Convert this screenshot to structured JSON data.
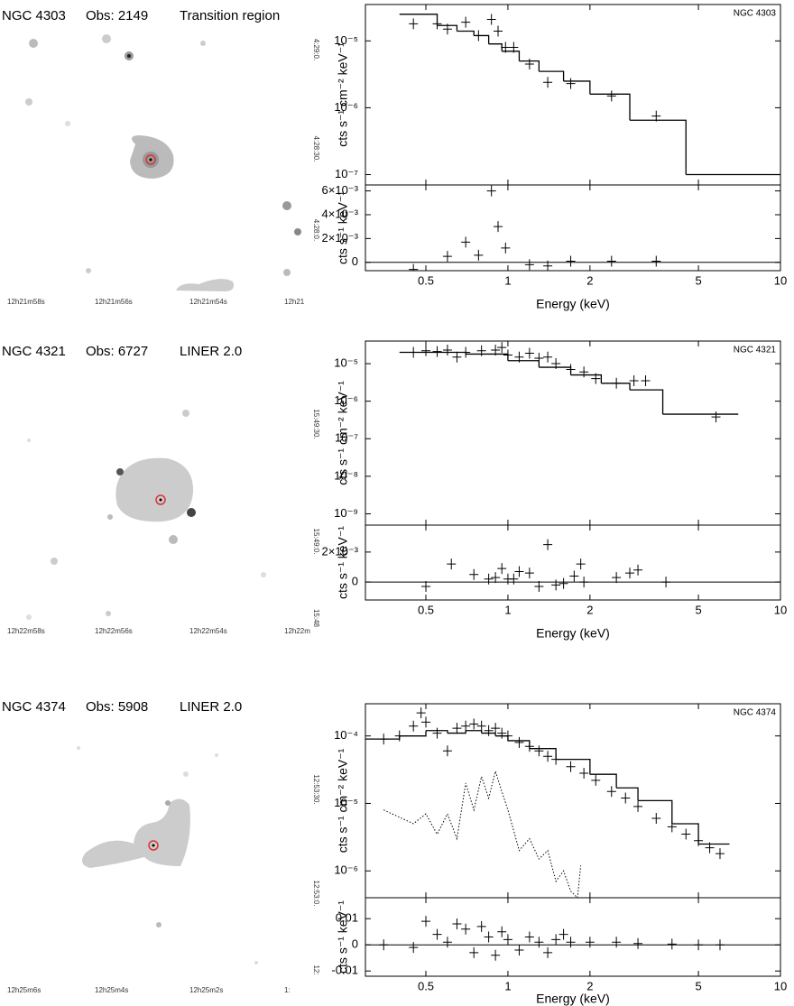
{
  "panels": [
    {
      "header": {
        "name": "NGC 4303",
        "obs": "Obs: 2149",
        "class": "Transition region"
      },
      "image": {
        "ra_labels": [
          "12h21m58s",
          "12h21m56s",
          "12h21m54s",
          "12h21"
        ],
        "dec_labels": [
          "4:29:0.",
          "4:28:30.",
          "4:28:0."
        ]
      }
    },
    {
      "header": {
        "name": "NGC 4321",
        "obs": "Obs: 6727",
        "class": "LINER 2.0"
      },
      "image": {
        "ra_labels": [
          "12h22m58s",
          "12h22m56s",
          "12h22m54s",
          "12h22m"
        ],
        "dec_labels": [
          "15:49:30.",
          "15:49:0.",
          "15:48"
        ]
      }
    },
    {
      "header": {
        "name": "NGC 4374",
        "obs": "Obs: 5908",
        "class": "LINER 2.0"
      },
      "image": {
        "ra_labels": [
          "12h25m6s",
          "12h25m4s",
          "12h25m2s",
          "1:"
        ],
        "dec_labels": [
          "12:53:30.",
          "12:53:0.",
          "12:"
        ]
      }
    }
  ],
  "chart_data": [
    {
      "type": "spectrum",
      "annotation": "NGC 4303",
      "ylabel": "cts s⁻¹ cm⁻² keV⁻¹",
      "log_x": true,
      "log_y": true,
      "xlim": [
        0.3,
        10
      ],
      "ylim": [
        7e-08,
        3.5e-05
      ],
      "yticks": [
        {
          "value": 1e-07,
          "label": "10⁻⁷"
        },
        {
          "value": 1e-06,
          "label": "10⁻⁶"
        },
        {
          "value": 1e-05,
          "label": "10⁻⁵"
        }
      ],
      "series": [
        {
          "style": "points",
          "color": "#000000",
          "x": [
            0.45,
            0.55,
            0.6,
            0.7,
            0.78,
            0.87,
            0.92,
            0.98,
            1.05,
            1.2,
            1.4,
            1.7,
            2.4,
            3.5
          ],
          "values": [
            1.8e-05,
            1.8e-05,
            1.5e-05,
            1.9e-05,
            1.2e-05,
            2.1e-05,
            1.4e-05,
            8e-06,
            8e-06,
            4.5e-06,
            2.4e-06,
            2.3e-06,
            1.5e-06,
            7.5e-07
          ]
        },
        {
          "style": "step",
          "color": "#000000",
          "bins": [
            0.4,
            0.55,
            0.65,
            0.75,
            0.85,
            0.95,
            1.1,
            1.3,
            1.6,
            2.0,
            2.8,
            4.5,
            10
          ],
          "values": [
            2.5e-05,
            1.7e-05,
            1.4e-05,
            1.2e-05,
            9e-06,
            7e-06,
            5e-06,
            3.5e-06,
            2.5e-06,
            1.6e-06,
            6.5e-07,
            1e-07
          ]
        }
      ]
    },
    {
      "type": "residual",
      "ylabel": "cts s⁻¹ keV⁻¹",
      "xlabel": "Energy (keV)",
      "log_x": true,
      "xlim": [
        0.3,
        10
      ],
      "ylim": [
        -0.0007,
        0.0065
      ],
      "xticks": [
        0.5,
        1,
        2,
        5,
        10
      ],
      "yticks": [
        0,
        {
          "value": 0.002,
          "label": "2×10⁻³"
        },
        {
          "value": 0.004,
          "label": "4×10⁻³"
        },
        {
          "value": 0.006,
          "label": "6×10⁻³"
        }
      ],
      "series": [
        {
          "style": "points",
          "color": "#000000",
          "x": [
            0.45,
            0.6,
            0.7,
            0.78,
            0.87,
            0.92,
            0.98,
            1.2,
            1.4,
            1.7,
            2.4,
            3.5
          ],
          "values": [
            -0.0006,
            0.0005,
            0.0017,
            0.0006,
            0.006,
            0.003,
            0.0012,
            -0.0002,
            -0.0003,
            0.0001,
            0.0001,
            0.0001
          ]
        }
      ]
    },
    {
      "type": "spectrum",
      "annotation": "NGC 4321",
      "ylabel": "cts s⁻¹ cm⁻² keV⁻¹",
      "log_x": true,
      "log_y": true,
      "xlim": [
        0.3,
        10
      ],
      "ylim": [
        5e-10,
        4e-05
      ],
      "yticks": [
        {
          "value": 1e-09,
          "label": "10⁻⁹"
        },
        {
          "value": 1e-08,
          "label": "10⁻⁸"
        },
        {
          "value": 1e-07,
          "label": "10⁻⁷"
        },
        {
          "value": 1e-06,
          "label": "10⁻⁶"
        },
        {
          "value": 1e-05,
          "label": "10⁻⁵"
        }
      ],
      "series": [
        {
          "style": "points",
          "color": "#000000",
          "x": [
            0.45,
            0.5,
            0.55,
            0.6,
            0.65,
            0.7,
            0.8,
            0.9,
            0.95,
            1.0,
            1.1,
            1.2,
            1.3,
            1.4,
            1.5,
            1.7,
            1.9,
            2.1,
            2.5,
            2.9,
            3.2,
            5.8
          ],
          "values": [
            2e-05,
            2.2e-05,
            2.1e-05,
            2.3e-05,
            1.5e-05,
            2e-05,
            2.2e-05,
            2.3e-05,
            2.7e-05,
            1.7e-05,
            1.5e-05,
            1.9e-05,
            1.4e-05,
            1.5e-05,
            1e-05,
            7e-06,
            6e-06,
            4e-06,
            3e-06,
            3.5e-06,
            3.5e-06,
            3.8e-07
          ]
        },
        {
          "style": "step",
          "color": "#000000",
          "bins": [
            0.4,
            0.7,
            1.0,
            1.3,
            1.7,
            2.2,
            2.8,
            3.7,
            7
          ],
          "values": [
            2e-05,
            1.8e-05,
            1.2e-05,
            8e-06,
            5e-06,
            3e-06,
            2e-06,
            4.5e-07
          ]
        }
      ]
    },
    {
      "type": "residual",
      "ylabel": "cts s⁻¹ keV⁻¹",
      "xlabel": "Energy (keV)",
      "log_x": true,
      "xlim": [
        0.3,
        10
      ],
      "ylim": [
        -0.0012,
        0.0038
      ],
      "xticks": [
        0.5,
        1,
        2,
        5,
        10
      ],
      "yticks": [
        0,
        {
          "value": 0.002,
          "label": "2×10⁻³"
        }
      ],
      "series": [
        {
          "style": "points",
          "color": "#000000",
          "x": [
            0.5,
            0.62,
            0.75,
            0.85,
            0.9,
            0.95,
            1.0,
            1.05,
            1.1,
            1.2,
            1.3,
            1.4,
            1.5,
            1.6,
            1.75,
            1.85,
            1.9,
            2.5,
            2.8,
            3.0,
            3.8
          ],
          "values": [
            -0.0003,
            0.0012,
            0.0005,
            0.0002,
            0.0003,
            0.0009,
            0.0002,
            0.0002,
            0.0007,
            0.0006,
            -0.0003,
            0.0025,
            -0.0002,
            -0.0001,
            0.0004,
            0.0012,
            0.0,
            0.0003,
            0.0006,
            0.0008,
            0.0
          ]
        }
      ]
    },
    {
      "type": "spectrum",
      "annotation": "NGC 4374",
      "ylabel": "cts s⁻¹ cm⁻² keV⁻¹",
      "log_x": true,
      "log_y": true,
      "xlim": [
        0.3,
        10
      ],
      "ylim": [
        4e-07,
        0.0003
      ],
      "yticks": [
        {
          "value": 1e-06,
          "label": "10⁻⁶"
        },
        {
          "value": 1e-05,
          "label": "10⁻⁵"
        },
        {
          "value": 0.0001,
          "label": "10⁻⁴"
        }
      ],
      "series": [
        {
          "style": "points",
          "color": "#000000",
          "x": [
            0.35,
            0.4,
            0.45,
            0.48,
            0.5,
            0.55,
            0.6,
            0.65,
            0.7,
            0.75,
            0.8,
            0.85,
            0.9,
            0.95,
            1.0,
            1.1,
            1.2,
            1.3,
            1.4,
            1.5,
            1.7,
            1.9,
            2.1,
            2.4,
            2.7,
            3.0,
            3.5,
            4.0,
            4.5,
            5.0,
            5.5,
            6.0
          ],
          "values": [
            9e-05,
            0.0001,
            0.00014,
            0.00022,
            0.00016,
            0.00011,
            6e-05,
            0.00013,
            0.00014,
            0.00015,
            0.00014,
            0.00012,
            0.00013,
            0.00011,
            0.0001,
            8e-05,
            7e-05,
            6e-05,
            5e-05,
            4.5e-05,
            3.5e-05,
            2.8e-05,
            2.2e-05,
            1.5e-05,
            1.2e-05,
            9e-06,
            6e-06,
            4.5e-06,
            3.5e-06,
            2.8e-06,
            2.2e-06,
            1.8e-06
          ]
        },
        {
          "style": "step",
          "color": "#000000",
          "bins": [
            0.3,
            0.4,
            0.5,
            0.6,
            0.7,
            0.8,
            0.9,
            1.0,
            1.2,
            1.5,
            2.0,
            2.5,
            3.0,
            4.0,
            5.0,
            6.5
          ],
          "values": [
            9e-05,
            0.0001,
            0.00012,
            0.00011,
            0.00012,
            0.00011,
            0.0001,
            8.5e-05,
            6.5e-05,
            4.5e-05,
            2.7e-05,
            1.7e-05,
            1.1e-05,
            5e-06,
            2.5e-06
          ]
        },
        {
          "style": "dotted",
          "color": "#000000",
          "x": [
            0.35,
            0.45,
            0.5,
            0.55,
            0.6,
            0.65,
            0.7,
            0.75,
            0.8,
            0.85,
            0.9,
            0.95,
            1.0,
            1.1,
            1.2,
            1.3,
            1.4,
            1.5,
            1.6,
            1.7,
            1.8,
            1.85
          ],
          "values": [
            8e-06,
            5e-06,
            7e-06,
            3.5e-06,
            7e-06,
            3e-06,
            2e-05,
            8e-06,
            2.5e-05,
            1.2e-05,
            3e-05,
            1.5e-05,
            8e-06,
            2e-06,
            3e-06,
            1.5e-06,
            2e-06,
            7e-07,
            1e-06,
            5e-07,
            4e-07,
            1.2e-06
          ]
        }
      ]
    },
    {
      "type": "residual",
      "ylabel": "cts s⁻¹ keV⁻¹",
      "xlabel": "Energy (keV)",
      "log_x": true,
      "xlim": [
        0.3,
        10
      ],
      "ylim": [
        -0.012,
        0.018
      ],
      "xticks": [
        0.5,
        1,
        2,
        5,
        10
      ],
      "yticks": [
        -0.01,
        0,
        0.01
      ],
      "series": [
        {
          "style": "points",
          "color": "#000000",
          "x": [
            0.35,
            0.45,
            0.5,
            0.55,
            0.6,
            0.65,
            0.7,
            0.75,
            0.8,
            0.85,
            0.9,
            0.95,
            1.0,
            1.1,
            1.2,
            1.3,
            1.4,
            1.5,
            1.6,
            1.7,
            2.0,
            2.5,
            3.0,
            4.0,
            5.0,
            6.0
          ],
          "values": [
            0,
            -0.001,
            0.009,
            0.004,
            0.001,
            0.008,
            0.006,
            -0.003,
            0.007,
            0.003,
            -0.004,
            0.005,
            0.002,
            -0.002,
            0.003,
            0.001,
            -0.003,
            0.002,
            0.004,
            0.001,
            0.001,
            0.001,
            0.0005,
            0.0003,
            0,
            0
          ]
        }
      ]
    }
  ]
}
